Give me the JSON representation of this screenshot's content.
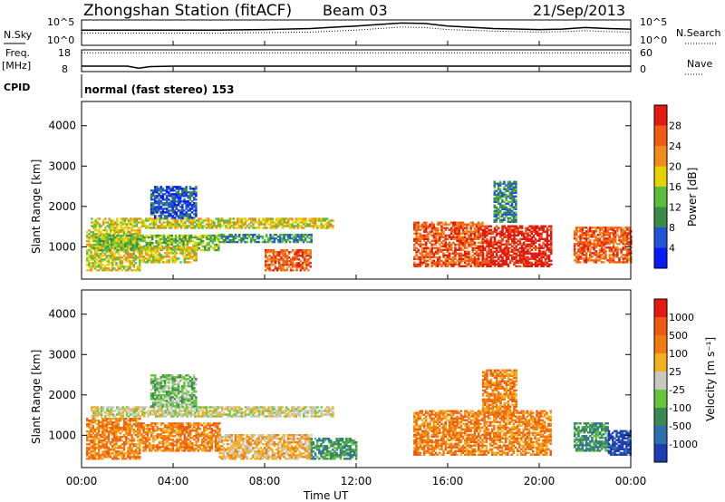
{
  "header": {
    "title": "Zhongshan Station (fitACF)",
    "beam": "Beam 03",
    "date": "21/Sep/2013"
  },
  "nsky": {
    "label": "N.Sky",
    "ticks_left": [
      "10^5",
      "10^0"
    ],
    "ticks_right": [
      "10^5",
      "10^0"
    ],
    "right_label": "N.Search"
  },
  "freq": {
    "label_line1": "Freq.",
    "label_line2": "[MHz]",
    "ticks_left": [
      "18",
      "8"
    ],
    "ticks_right": [
      "60",
      "0"
    ],
    "right_label": "Nave"
  },
  "cpid": {
    "label": "CPID",
    "text": "normal (fast stereo) 153"
  },
  "axes": {
    "x_ticks": [
      "00:00",
      "04:00",
      "08:00",
      "12:00",
      "16:00",
      "20:00",
      "00:00"
    ],
    "xlabel": "Time UT",
    "ylabel": "Slant Range [km]",
    "y_ticks": [
      "1000",
      "2000",
      "3000",
      "4000"
    ],
    "ylim": [
      200,
      4600
    ],
    "xlim_hours": [
      0,
      24
    ]
  },
  "power_colorbar": {
    "label": "Power [dB]",
    "ticks": [
      "4",
      "8",
      "12",
      "16",
      "20",
      "24",
      "28"
    ],
    "colors": [
      "#0a1cf5",
      "#2155d6",
      "#3a8c46",
      "#5cbd3d",
      "#e6d200",
      "#f28a1e",
      "#f25c12",
      "#e31a10"
    ]
  },
  "velocity_colorbar": {
    "label": "Velocity [m s⁻¹]",
    "ticks": [
      "1000",
      "500",
      "100",
      "25",
      "-25",
      "-100",
      "-500",
      "-1000"
    ],
    "colors": [
      "#1f3cb4",
      "#2e6fb0",
      "#3b8a55",
      "#66c63a",
      "#c8c8c0",
      "#f2b01e",
      "#f27a12",
      "#f05a10",
      "#e31a10"
    ]
  },
  "chart_data": [
    {
      "type": "line",
      "title": "N.Sky / N.Search",
      "x_hours": [
        0,
        2,
        4,
        6,
        8,
        10,
        12,
        13,
        14,
        15,
        16,
        18,
        20,
        21,
        22,
        23,
        24
      ],
      "series": [
        {
          "name": "N.Sky",
          "values": [
            3.0,
            3.0,
            3.0,
            3.0,
            3.1,
            3.3,
            3.8,
            4.1,
            4.4,
            4.3,
            3.8,
            3.3,
            3.1,
            3.2,
            3.5,
            3.3,
            3.2
          ]
        },
        {
          "name": "N.Search",
          "values": [
            2.4,
            2.4,
            2.4,
            2.4,
            2.5,
            2.6,
            3.0,
            3.3,
            3.6,
            3.5,
            3.1,
            2.8,
            2.6,
            2.7,
            2.9,
            2.7,
            2.6
          ]
        }
      ]
    },
    {
      "type": "line",
      "title": "Freq / Nave",
      "x_hours": [
        0,
        1,
        2,
        2.5,
        3,
        4,
        8,
        12,
        16,
        20,
        24
      ],
      "series": [
        {
          "name": "Nave",
          "values": [
            52,
            52,
            52,
            52,
            52,
            52,
            52,
            52,
            52,
            52,
            52
          ]
        },
        {
          "name": "Freq.",
          "values": [
            10.5,
            10.5,
            10.5,
            9.6,
            10.3,
            10.5,
            10.5,
            10.5,
            10.5,
            10.5,
            10.5
          ]
        }
      ]
    },
    {
      "type": "heatmap",
      "title": "Power",
      "xlabel": "Time UT",
      "ylabel": "Slant Range [km]",
      "ylim": [
        200,
        4600
      ],
      "regions": [
        {
          "t0": 0.2,
          "t1": 2.5,
          "r0": 400,
          "r1": 1400,
          "level": 4
        },
        {
          "t0": 0.4,
          "t1": 11.0,
          "r0": 1450,
          "r1": 1700,
          "level": 4
        },
        {
          "t0": 0.5,
          "t1": 6.0,
          "r0": 900,
          "r1": 1300,
          "level": 3
        },
        {
          "t0": 2.5,
          "t1": 5.0,
          "r0": 600,
          "r1": 1000,
          "level": 4
        },
        {
          "t0": 3.0,
          "t1": 5.0,
          "r0": 1700,
          "r1": 2500,
          "level": 1
        },
        {
          "t0": 6.0,
          "t1": 10.0,
          "r0": 1100,
          "r1": 1300,
          "level": 2
        },
        {
          "t0": 8.0,
          "t1": 10.0,
          "r0": 400,
          "r1": 900,
          "level": 6
        },
        {
          "t0": 14.5,
          "t1": 17.5,
          "r0": 500,
          "r1": 1600,
          "level": 6
        },
        {
          "t0": 17.5,
          "t1": 20.5,
          "r0": 500,
          "r1": 1500,
          "level": 7
        },
        {
          "t0": 18.0,
          "t1": 19.0,
          "r0": 1600,
          "r1": 2600,
          "level": 2
        },
        {
          "t0": 21.5,
          "t1": 24.0,
          "r0": 600,
          "r1": 1500,
          "level": 6
        }
      ]
    },
    {
      "type": "heatmap",
      "title": "Velocity",
      "xlabel": "Time UT",
      "ylabel": "Slant Range [km]",
      "ylim": [
        200,
        4600
      ],
      "regions": [
        {
          "t0": 0.2,
          "t1": 2.5,
          "r0": 400,
          "r1": 1400,
          "level": 6
        },
        {
          "t0": 0.4,
          "t1": 11.0,
          "r0": 1450,
          "r1": 1700,
          "level": 4
        },
        {
          "t0": 2.5,
          "t1": 6.0,
          "r0": 600,
          "r1": 1300,
          "level": 6
        },
        {
          "t0": 3.0,
          "t1": 5.0,
          "r0": 1700,
          "r1": 2500,
          "level": 3
        },
        {
          "t0": 6.0,
          "t1": 10.0,
          "r0": 400,
          "r1": 1000,
          "level": 5
        },
        {
          "t0": 10.0,
          "t1": 12.0,
          "r0": 400,
          "r1": 900,
          "level": 2
        },
        {
          "t0": 14.5,
          "t1": 20.5,
          "r0": 500,
          "r1": 1600,
          "level": 6
        },
        {
          "t0": 17.5,
          "t1": 19.0,
          "r0": 1600,
          "r1": 2600,
          "level": 6
        },
        {
          "t0": 21.5,
          "t1": 23.0,
          "r0": 600,
          "r1": 1300,
          "level": 2
        },
        {
          "t0": 23.0,
          "t1": 24.0,
          "r0": 500,
          "r1": 1100,
          "level": 0
        }
      ]
    }
  ]
}
